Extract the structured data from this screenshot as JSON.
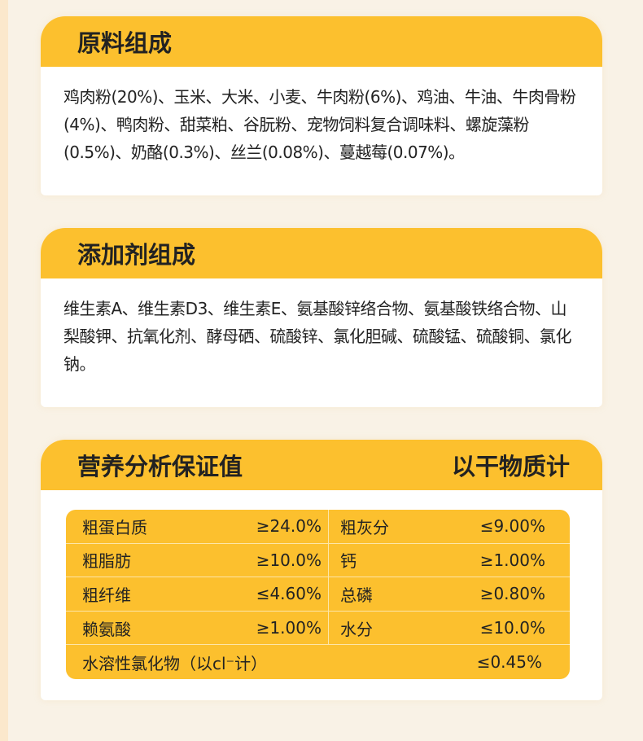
{
  "raw_materials": {
    "title": "原料组成",
    "text": "鸡肉粉(20%)、玉米、大米、小麦、牛肉粉(6%)、鸡油、牛油、牛肉骨粉(4%)、鸭肉粉、甜菜粕、谷朊粉、宠物饲料复合调味料、螺旋藻粉(0.5%)、奶酪(0.3%)、丝兰(0.08%)、蔓越莓(0.07%)。"
  },
  "additives": {
    "title": "添加剂组成",
    "text": "维生素A、维生素D3、维生素E、氨基酸锌络合物、氨基酸铁络合物、山梨酸钾、抗氧化剂、酵母硒、硫酸锌、氯化胆碱、硫酸锰、硫酸铜、氯化钠。"
  },
  "nutrition": {
    "title": "营养分析保证值",
    "basis": "以干物质计",
    "rows": [
      [
        {
          "name": "粗蛋白质",
          "value": "≥24.0%"
        },
        {
          "name": "粗灰分",
          "value": "≤9.00%"
        }
      ],
      [
        {
          "name": "粗脂肪",
          "value": "≥10.0%"
        },
        {
          "name": "钙",
          "value": "≥1.00%"
        }
      ],
      [
        {
          "name": "粗纤维",
          "value": "≤4.60%"
        },
        {
          "name": "总磷",
          "value": "≥0.80%"
        }
      ],
      [
        {
          "name": "赖氨酸",
          "value": "≥1.00%"
        },
        {
          "name": "水分",
          "value": "≤10.0%"
        }
      ]
    ],
    "last": {
      "name": "水溶性氯化物（以cl⁻计）",
      "value": "≤0.45%"
    }
  },
  "colors": {
    "accent": "#fcc02e",
    "background": "#f9f2e6"
  }
}
